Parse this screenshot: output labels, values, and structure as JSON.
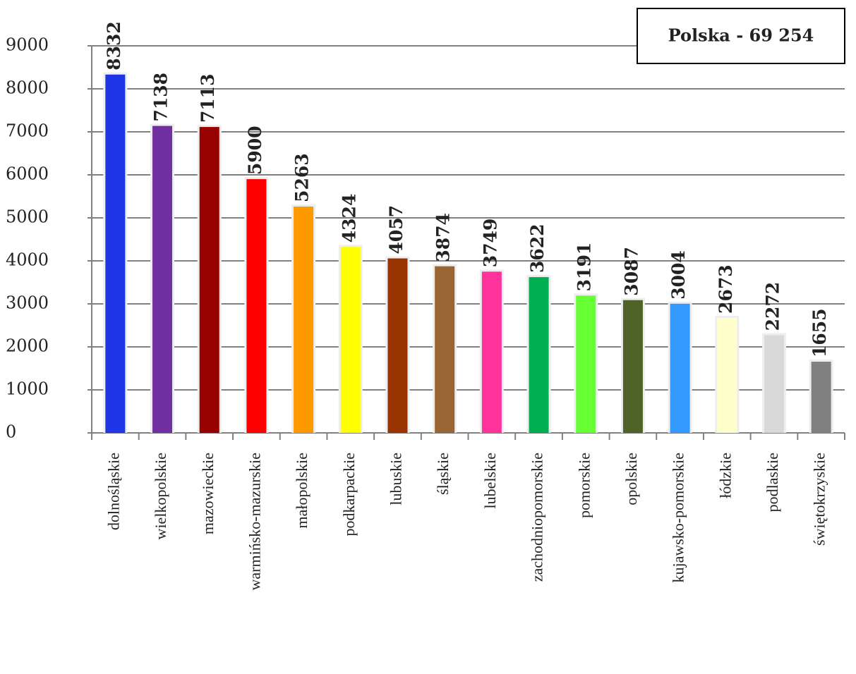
{
  "chart_data": {
    "type": "bar",
    "annotation": "Polska - 69 254",
    "categories": [
      "dolnośląskie",
      "wielkopolskie",
      "mazowieckie",
      "warmińsko-mazurskie",
      "małopolskie",
      "podkarpackie",
      "lubuskie",
      "śląskie",
      "lubelskie",
      "zachodniopomorskie",
      "pomorskie",
      "opolskie",
      "kujawsko-pomorskie",
      "łódzkie",
      "podlaskie",
      "świętokrzyskie"
    ],
    "values": [
      8332,
      7138,
      7113,
      5900,
      5263,
      4324,
      4057,
      3874,
      3749,
      3622,
      3191,
      3087,
      3004,
      2673,
      2272,
      1655
    ],
    "colors": [
      "#1f35e8",
      "#7030a0",
      "#990000",
      "#ff0000",
      "#ff9900",
      "#ffff00",
      "#993300",
      "#996633",
      "#ff3399",
      "#00b050",
      "#66ff33",
      "#4f6228",
      "#3399ff",
      "#ffffcc",
      "#d9d9d9",
      "#808080"
    ],
    "ylim": [
      0,
      9000
    ],
    "yticks": [
      0,
      1000,
      2000,
      3000,
      4000,
      5000,
      6000,
      7000,
      8000,
      9000
    ],
    "grid": true
  }
}
